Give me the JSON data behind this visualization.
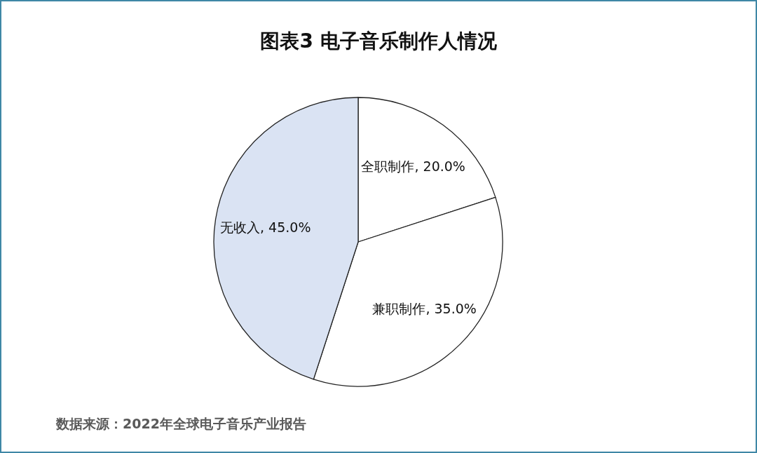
{
  "chart_data": {
    "type": "pie",
    "title": "图表3 电子音乐制作人情况",
    "categories": [
      "全职制作",
      "兼职制作",
      "无收入"
    ],
    "values": [
      20,
      35,
      45
    ],
    "value_labels": [
      "20.0%",
      "35.0%",
      "45.0%"
    ],
    "colors": [
      "#ffffff",
      "#ffffff",
      "#dae3f3"
    ],
    "annotations": [
      "数据来源：2022年全球电子音乐产业报告"
    ]
  }
}
